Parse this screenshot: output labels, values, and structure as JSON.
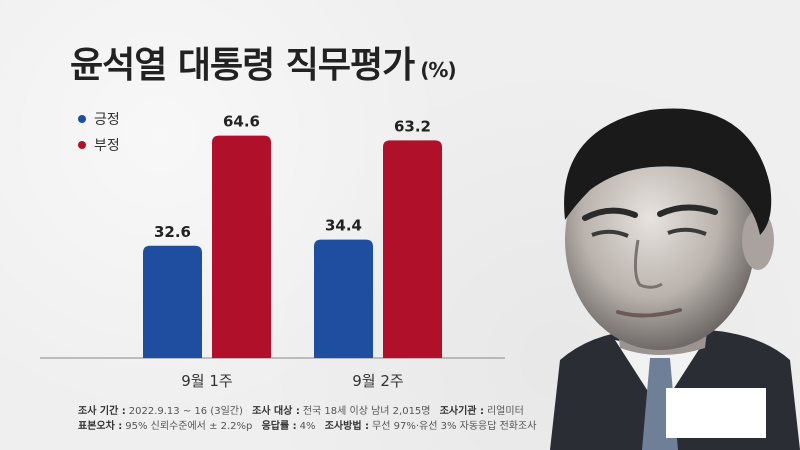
{
  "title": "윤석열 대통령 직무평가",
  "unit": "(%)",
  "colors": {
    "positive": "#1f4ea0",
    "negative": "#b0102a"
  },
  "legend": [
    {
      "label": "긍정",
      "color": "#1f4ea0"
    },
    {
      "label": "부정",
      "color": "#b0102a"
    }
  ],
  "chart_data": {
    "type": "bar",
    "categories": [
      "9월 1주",
      "9월 2주"
    ],
    "series": [
      {
        "name": "긍정",
        "values": [
          32.6,
          34.4
        ]
      },
      {
        "name": "부정",
        "values": [
          64.6,
          63.2
        ]
      }
    ],
    "ylim": [
      0,
      70
    ],
    "grid": false,
    "legend_position": "top-left"
  },
  "footer": {
    "line1": [
      {
        "label": "조사 기간 :",
        "value": "2022.9.13 ~ 16 (3일간)"
      },
      {
        "label": "조사 대상 :",
        "value": "전국 18세 이상 남녀 2,015명"
      },
      {
        "label": "조사기관 :",
        "value": "리얼미터"
      }
    ],
    "line2": [
      {
        "label": "표본오차 :",
        "value": "95% 신뢰수준에서 ± 2.2%p"
      },
      {
        "label": "응답률 :",
        "value": "4%"
      },
      {
        "label": "조사방법 :",
        "value": "무선 97%·유선 3% 자동응답 전화조사"
      }
    ]
  }
}
